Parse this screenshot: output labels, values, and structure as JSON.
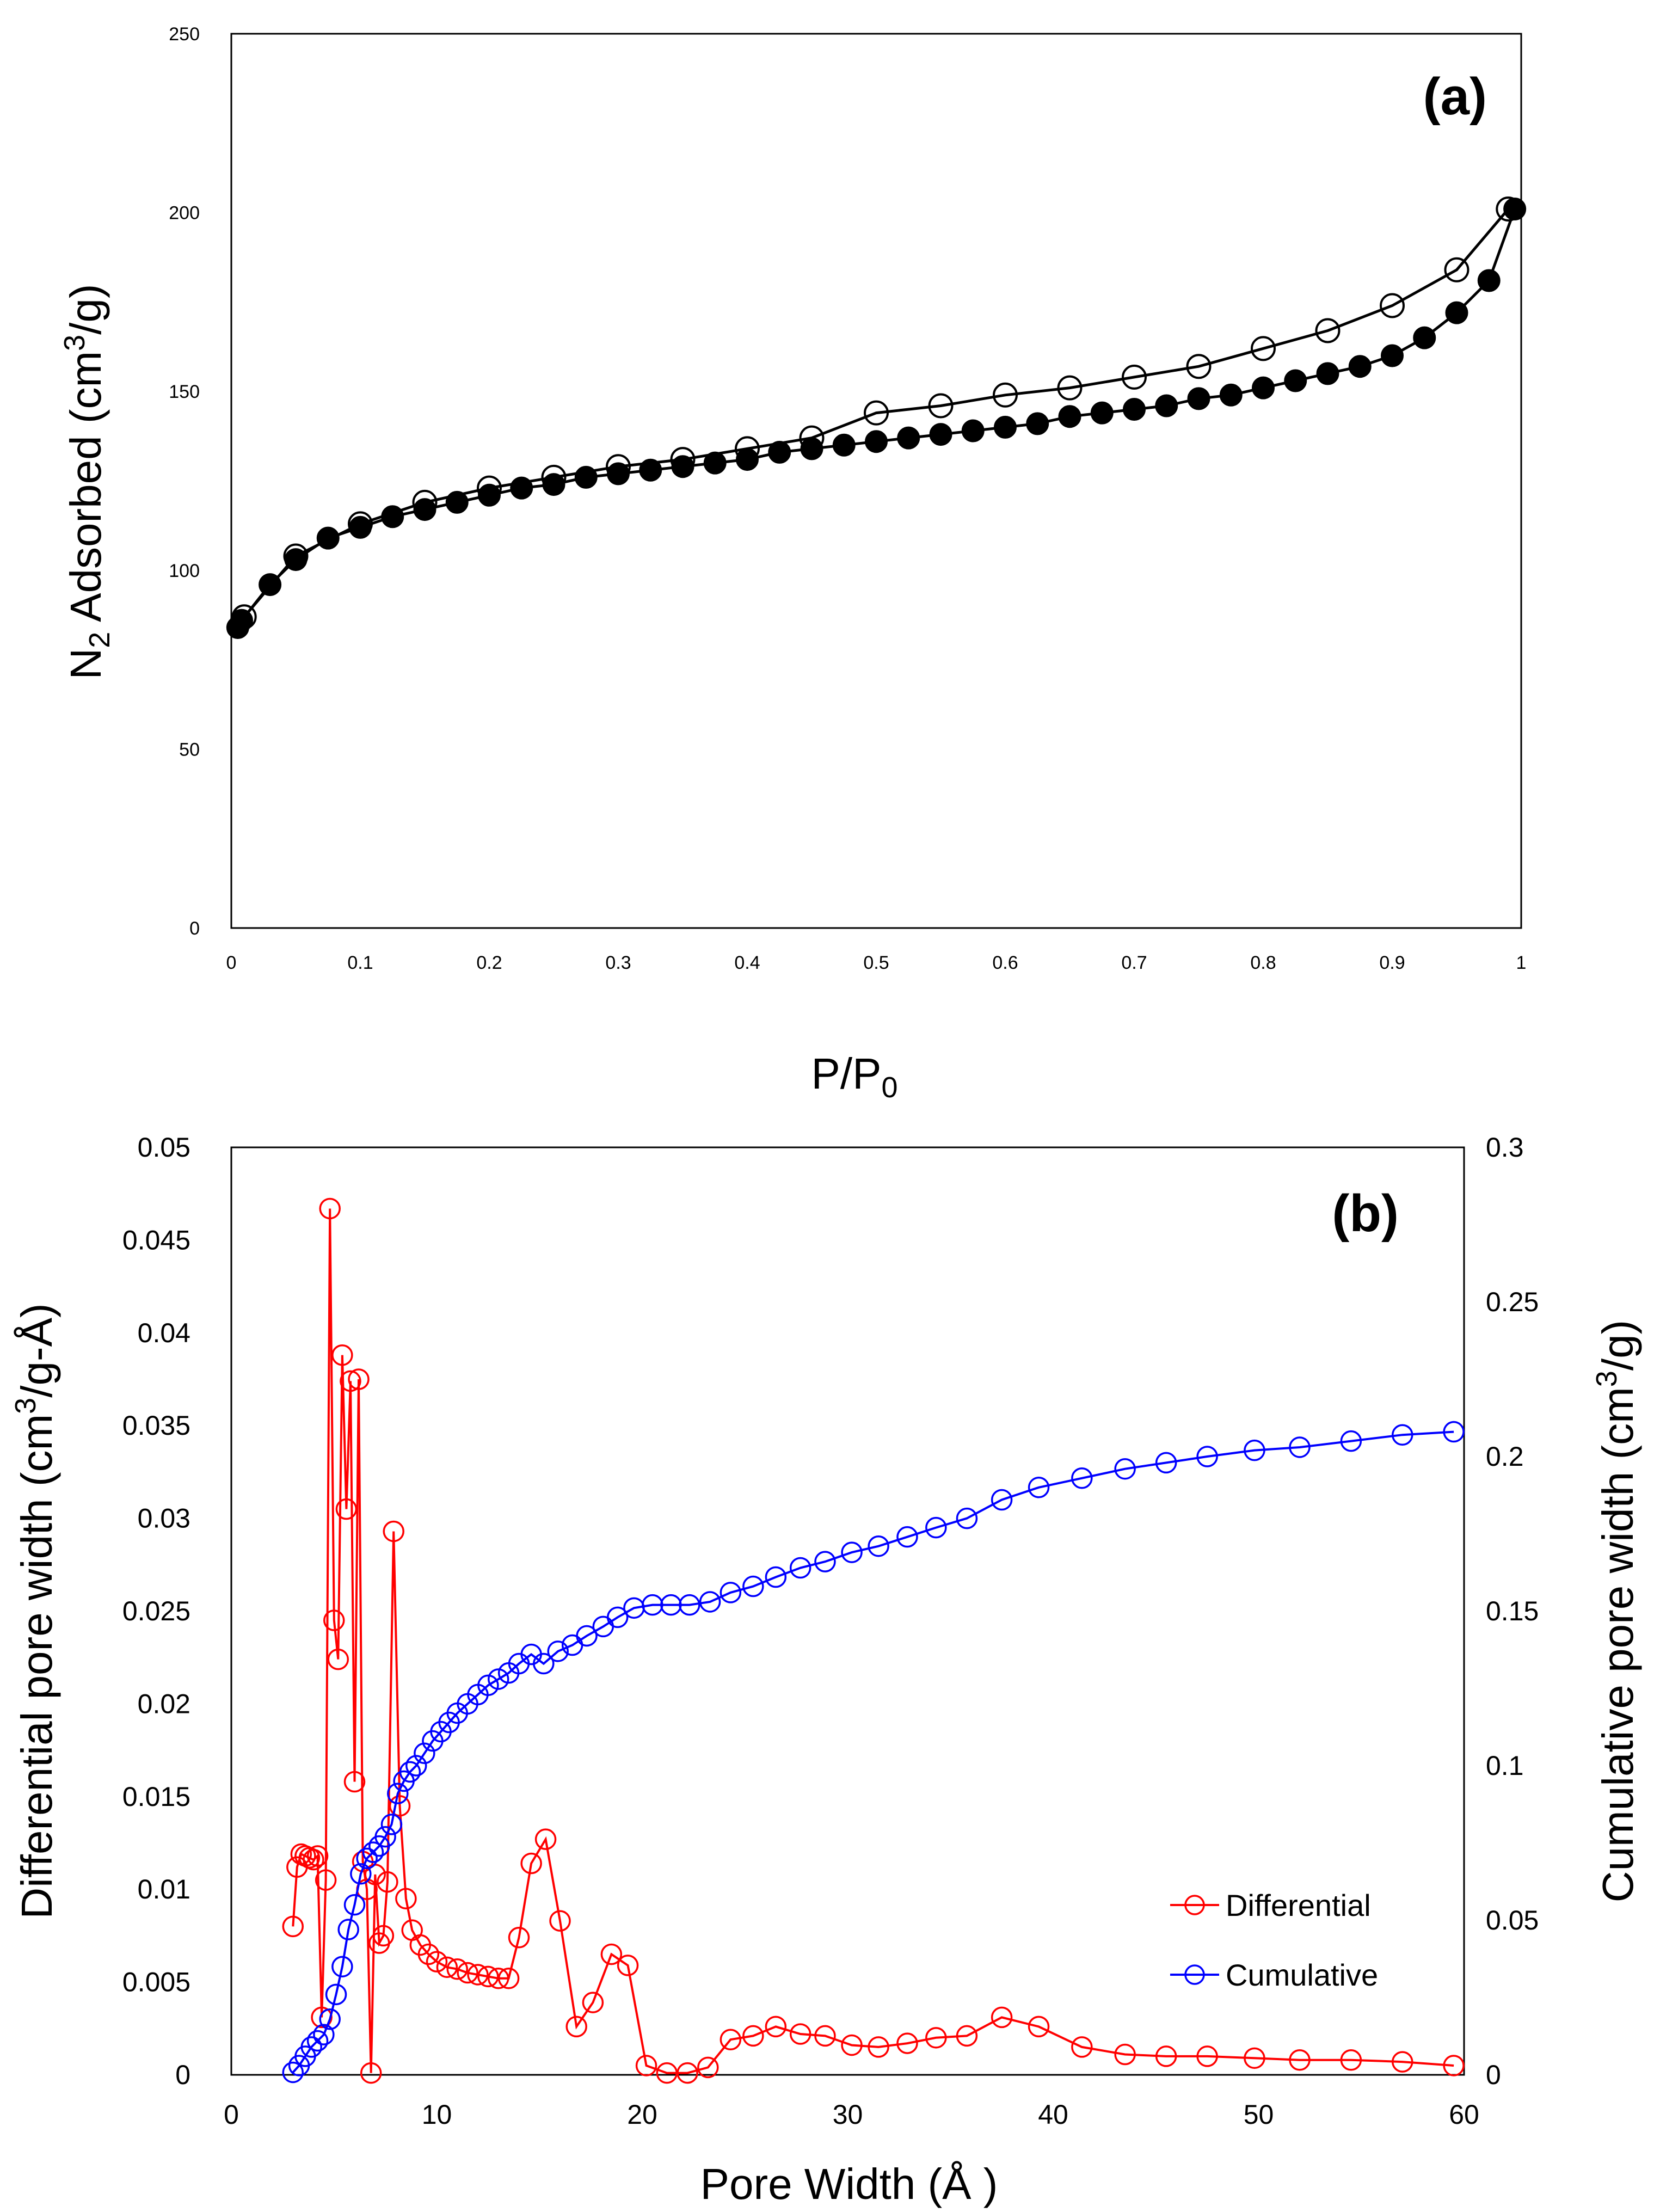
{
  "chart_data": [
    {
      "type": "scatter",
      "panel_label": "(a)",
      "xlabel": "P/P",
      "xlabel_sub": "0",
      "ylabel_pre": "N",
      "ylabel_sub": "2",
      "ylabel_mid": " Adsorbed (cm",
      "ylabel_sup": "3",
      "ylabel_post": "/g)",
      "xlim": [
        0,
        1
      ],
      "ylim": [
        0,
        250
      ],
      "xticks": [
        "0",
        "0.1",
        "0.2",
        "0.3",
        "0.4",
        "0.5",
        "0.6",
        "0.7",
        "0.8",
        "0.9",
        "1"
      ],
      "yticks": [
        "0",
        "50",
        "100",
        "150",
        "200",
        "250"
      ],
      "grid": false,
      "legend": "none",
      "series": [
        {
          "marker": "filled-circle",
          "color": "#000000",
          "x": [
            0.005,
            0.008,
            0.03,
            0.05,
            0.075,
            0.1,
            0.125,
            0.15,
            0.175,
            0.2,
            0.225,
            0.25,
            0.275,
            0.3,
            0.325,
            0.35,
            0.375,
            0.4,
            0.425,
            0.45,
            0.475,
            0.5,
            0.525,
            0.55,
            0.575,
            0.6,
            0.625,
            0.65,
            0.675,
            0.7,
            0.725,
            0.75,
            0.775,
            0.8,
            0.825,
            0.85,
            0.875,
            0.9,
            0.925,
            0.95,
            0.975,
            0.995
          ],
          "y": [
            84,
            86,
            96,
            103,
            109,
            112,
            115,
            117,
            119,
            121,
            123,
            124,
            126,
            127,
            128,
            129,
            130,
            131,
            133,
            134,
            135,
            136,
            137,
            138,
            139,
            140,
            141,
            143,
            144,
            145,
            146,
            148,
            149,
            151,
            153,
            155,
            157,
            160,
            165,
            172,
            181,
            201
          ]
        },
        {
          "marker": "open-circle",
          "color": "#000000",
          "x": [
            0.01,
            0.05,
            0.1,
            0.15,
            0.2,
            0.25,
            0.3,
            0.35,
            0.4,
            0.45,
            0.5,
            0.55,
            0.6,
            0.65,
            0.7,
            0.75,
            0.8,
            0.85,
            0.9,
            0.95,
            0.99
          ],
          "y": [
            87,
            104,
            113,
            119,
            123,
            126,
            129,
            131,
            134,
            137,
            144,
            146,
            149,
            151,
            154,
            157,
            162,
            167,
            174,
            184,
            201
          ]
        }
      ]
    },
    {
      "type": "line",
      "panel_label": "(b)",
      "xlabel": "Pore Width (Å )",
      "ylabel_left_pre": "Differential pore width (cm",
      "ylabel_left_sup": "3",
      "ylabel_left_post": "/g-Å)",
      "ylabel_right_pre": "Cumulative pore width (cm",
      "ylabel_right_sup": "3",
      "ylabel_right_post": "/g)",
      "xlim": [
        0,
        60
      ],
      "ylim_left": [
        0,
        0.05
      ],
      "ylim_right": [
        0,
        0.3
      ],
      "xticks": [
        "0",
        "10",
        "20",
        "30",
        "40",
        "50",
        "60"
      ],
      "yticks_left": [
        "0",
        "0.005",
        "0.01",
        "0.015",
        "0.02",
        "0.025",
        "0.03",
        "0.035",
        "0.04",
        "0.045",
        "0.05"
      ],
      "yticks_right": [
        "0",
        "0.05",
        "0.1",
        "0.15",
        "0.2",
        "0.25",
        "0.3"
      ],
      "grid": false,
      "legend": "lower-right",
      "series": [
        {
          "name": "Differential",
          "axis": "left",
          "color": "#ff0000",
          "marker": "open-circle",
          "x": [
            3.0,
            3.2,
            3.4,
            3.6,
            3.8,
            4.0,
            4.2,
            4.4,
            4.6,
            4.8,
            5.0,
            5.2,
            5.4,
            5.6,
            5.8,
            6.0,
            6.2,
            6.4,
            6.6,
            6.8,
            7.0,
            7.2,
            7.4,
            7.6,
            7.9,
            8.2,
            8.5,
            8.8,
            9.2,
            9.6,
            10.0,
            10.5,
            11.0,
            11.5,
            12.0,
            12.5,
            13.0,
            13.5,
            14.0,
            14.6,
            15.3,
            16.0,
            16.8,
            17.6,
            18.5,
            19.3,
            20.2,
            21.2,
            22.2,
            23.2,
            24.3,
            25.4,
            26.5,
            27.7,
            28.9,
            30.2,
            31.5,
            32.9,
            34.3,
            35.8,
            37.5,
            39.3,
            41.4,
            43.5,
            45.5,
            47.5,
            49.8,
            52.0,
            54.5,
            57.0,
            59.5
          ],
          "y": [
            0.008,
            0.0112,
            0.0119,
            0.0118,
            0.0117,
            0.0116,
            0.0118,
            0.0031,
            0.0105,
            0.0467,
            0.0245,
            0.0224,
            0.0388,
            0.0305,
            0.0374,
            0.0158,
            0.0375,
            0.0115,
            0.01,
            0.0001,
            0.0108,
            0.0071,
            0.0075,
            0.0104,
            0.0293,
            0.0145,
            0.0095,
            0.0078,
            0.007,
            0.0065,
            0.0061,
            0.0058,
            0.0057,
            0.0055,
            0.0054,
            0.0053,
            0.0052,
            0.0052,
            0.0074,
            0.0114,
            0.0127,
            0.0083,
            0.0026,
            0.0039,
            0.0065,
            0.0059,
            0.0005,
            0.0001,
            0.0001,
            0.0004,
            0.0019,
            0.0021,
            0.0026,
            0.0022,
            0.0021,
            0.0016,
            0.0015,
            0.0017,
            0.002,
            0.0021,
            0.0031,
            0.0026,
            0.0015,
            0.0011,
            0.001,
            0.001,
            0.0009,
            0.0008,
            0.0008,
            0.0007,
            0.0005
          ]
        },
        {
          "name": "Cumulative",
          "axis": "right",
          "color": "#0000ff",
          "marker": "open-circle",
          "x": [
            3.0,
            3.3,
            3.6,
            3.9,
            4.2,
            4.5,
            4.8,
            5.1,
            5.4,
            5.7,
            6.0,
            6.3,
            6.6,
            6.9,
            7.2,
            7.5,
            7.8,
            8.1,
            8.4,
            8.7,
            9.0,
            9.4,
            9.8,
            10.2,
            10.6,
            11.0,
            11.5,
            12.0,
            12.5,
            13.0,
            13.5,
            14.0,
            14.6,
            15.2,
            15.9,
            16.6,
            17.3,
            18.1,
            18.8,
            19.6,
            20.5,
            21.4,
            22.3,
            23.3,
            24.3,
            25.4,
            26.5,
            27.7,
            28.9,
            30.2,
            31.5,
            32.9,
            34.3,
            35.8,
            37.5,
            39.3,
            41.4,
            43.5,
            45.5,
            47.5,
            49.8,
            52.0,
            54.5,
            57.0,
            59.5
          ],
          "y": [
            0.0008,
            0.003,
            0.006,
            0.009,
            0.011,
            0.013,
            0.018,
            0.026,
            0.035,
            0.047,
            0.055,
            0.065,
            0.07,
            0.072,
            0.074,
            0.077,
            0.081,
            0.091,
            0.095,
            0.098,
            0.1,
            0.104,
            0.108,
            0.111,
            0.114,
            0.117,
            0.12,
            0.123,
            0.126,
            0.128,
            0.13,
            0.133,
            0.136,
            0.133,
            0.137,
            0.139,
            0.142,
            0.145,
            0.148,
            0.151,
            0.152,
            0.152,
            0.152,
            0.153,
            0.156,
            0.158,
            0.161,
            0.164,
            0.166,
            0.169,
            0.171,
            0.174,
            0.177,
            0.18,
            0.186,
            0.19,
            0.193,
            0.196,
            0.198,
            0.2,
            0.202,
            0.203,
            0.205,
            0.207,
            0.208
          ]
        }
      ]
    }
  ]
}
